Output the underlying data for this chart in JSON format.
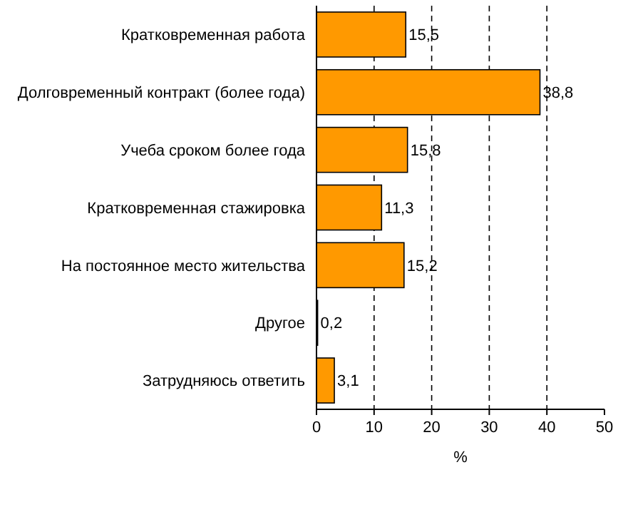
{
  "chart_data": {
    "type": "bar",
    "orientation": "horizontal",
    "xlabel": "%",
    "categories": [
      "Кратковременная работа",
      "Долговременный контракт (более года)",
      "Учеба сроком более года",
      "Кратковременная стажировка",
      "На постоянное место жительства",
      "Другое",
      "Затрудняюсь ответить"
    ],
    "values": [
      15.5,
      38.8,
      15.8,
      11.3,
      15.2,
      0.2,
      3.1
    ],
    "value_labels": [
      "15,5",
      "38,8",
      "15,8",
      "11,3",
      "15,2",
      "0,2",
      "3,1"
    ],
    "color": "#ff9900",
    "xlim": [
      0,
      50
    ],
    "xticks": [
      0,
      10,
      20,
      30,
      40,
      50
    ],
    "grid": "x"
  }
}
